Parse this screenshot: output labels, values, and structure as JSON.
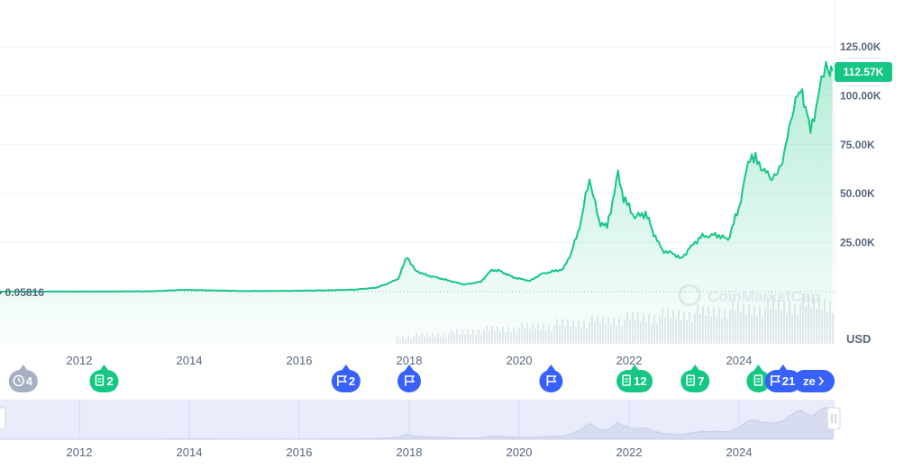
{
  "chart_data": {
    "type": "area",
    "currency_label": "USD",
    "y_ticks": [
      {
        "v": 25000,
        "label": "25.00K"
      },
      {
        "v": 50000,
        "label": "50.00K"
      },
      {
        "v": 75000,
        "label": "75.00K"
      },
      {
        "v": 100000,
        "label": "100.00K"
      },
      {
        "v": 125000,
        "label": "125.00K"
      }
    ],
    "ylim": [
      0,
      125000
    ],
    "xlim": [
      2010.55,
      2025.7
    ],
    "x_ticks": [
      {
        "v": 2012,
        "label": "2012"
      },
      {
        "v": 2014,
        "label": "2014"
      },
      {
        "v": 2016,
        "label": "2016"
      },
      {
        "v": 2018,
        "label": "2018"
      },
      {
        "v": 2020,
        "label": "2020"
      },
      {
        "v": 2022,
        "label": "2022"
      },
      {
        "v": 2024,
        "label": "2024"
      }
    ],
    "start_value_label": "0.05816",
    "current_price_label": "112.57K",
    "current_price": 112570,
    "watermark": "CoinMarketCap",
    "colors": {
      "line": "#16c784",
      "event_green": "#16c784",
      "event_blue": "#3861fb",
      "event_gray": "#a6b0c3"
    },
    "series": [
      {
        "x": [
          2010.55,
          2011.5,
          2012.5,
          2013.0,
          2013.3,
          2013.9,
          2014.1,
          2015.0,
          2016.0,
          2016.5,
          2017.0,
          2017.4,
          2017.6,
          2017.8,
          2017.96,
          2018.1,
          2018.3,
          2018.6,
          2019.0,
          2019.3,
          2019.5,
          2019.65,
          2019.9,
          2020.2,
          2020.4,
          2020.8,
          2020.95,
          2021.1,
          2021.28,
          2021.45,
          2021.6,
          2021.8,
          2021.9,
          2022.1,
          2022.3,
          2022.45,
          2022.6,
          2022.8,
          2022.95,
          2023.1,
          2023.3,
          2023.6,
          2023.8,
          2024.0,
          2024.2,
          2024.4,
          2024.55,
          2024.7,
          2024.85,
          2025.0,
          2025.15,
          2025.3,
          2025.5,
          2025.58,
          2025.65,
          2025.7
        ],
        "values": [
          0.06,
          5,
          10,
          100,
          150,
          900,
          800,
          250,
          430,
          650,
          1000,
          2000,
          4000,
          6500,
          18000,
          11000,
          8500,
          6500,
          3600,
          5000,
          11000,
          10500,
          7200,
          5500,
          9000,
          11500,
          20000,
          33000,
          58000,
          36000,
          33000,
          60000,
          48000,
          38000,
          40000,
          30000,
          21000,
          19500,
          16800,
          22000,
          28000,
          29000,
          26500,
          43000,
          70000,
          64000,
          58000,
          60000,
          73000,
          97000,
          102000,
          82000,
          107000,
          118000,
          110000,
          112570
        ]
      }
    ],
    "events": [
      {
        "label": "4",
        "icon": "history",
        "color": "gray",
        "x": 2010.98
      },
      {
        "label": "2",
        "icon": "doc",
        "color": "green",
        "x": 2012.45
      },
      {
        "label": "2",
        "icon": "flag",
        "color": "blue",
        "x": 2016.85
      },
      {
        "label": "",
        "icon": "flag",
        "color": "blue",
        "x": 218.0
      },
      {
        "label": "",
        "icon": "flag",
        "color": "blue",
        "x": 2020.58
      },
      {
        "label": "12",
        "icon": "doc",
        "color": "green",
        "x": 2022.1
      },
      {
        "label": "7",
        "icon": "doc",
        "color": "green",
        "x": 2023.2
      },
      {
        "label": "",
        "icon": "doc",
        "color": "green",
        "x": 2024.35
      },
      {
        "label": "21",
        "icon": "flag",
        "color": "blue",
        "x": 2024.8
      }
    ],
    "expand_button_label": "ze"
  }
}
